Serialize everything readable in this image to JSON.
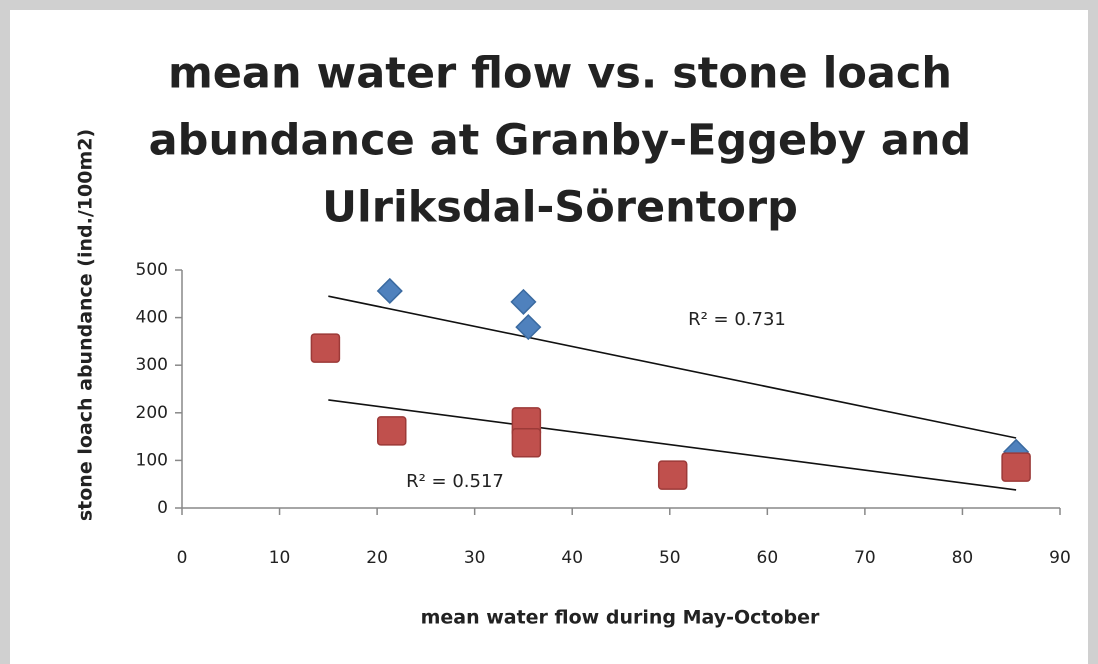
{
  "chart_data": {
    "type": "scatter",
    "title": [
      "mean water flow vs. stone loach",
      "abundance at Granby-Eggeby and",
      "Ulriksdal-Sörentorp"
    ],
    "x_label": "mean water flow during May-October",
    "y_label": "stone loach abundance  (ind./100m2)",
    "xlim": [
      0,
      90
    ],
    "xticks": [
      0,
      10,
      20,
      30,
      40,
      50,
      60,
      70,
      80,
      90
    ],
    "ylim": [
      0,
      500
    ],
    "yticks": [
      0,
      100,
      200,
      300,
      400,
      500
    ],
    "grid": false,
    "series": [
      {
        "color": "#4f81bd",
        "marker": "diamond",
        "x": [
          21.3,
          35,
          35.5,
          85.5
        ],
        "values": [
          456,
          433,
          380,
          118
        ],
        "trendline": {
          "x": [
            15,
            85.5
          ],
          "y": [
            445,
            147
          ]
        },
        "annotation": "R² = 0.731"
      },
      {
        "color": "#c0504d",
        "marker": "square",
        "x": [
          14.7,
          21.5,
          35.3,
          35.3,
          50.3,
          85.5
        ],
        "values": [
          336,
          162,
          181,
          137,
          69,
          86
        ],
        "trendline": {
          "x": [
            15,
            85.5
          ],
          "y": [
            227,
            38
          ]
        },
        "annotation": "R² = 0.517"
      }
    ]
  }
}
